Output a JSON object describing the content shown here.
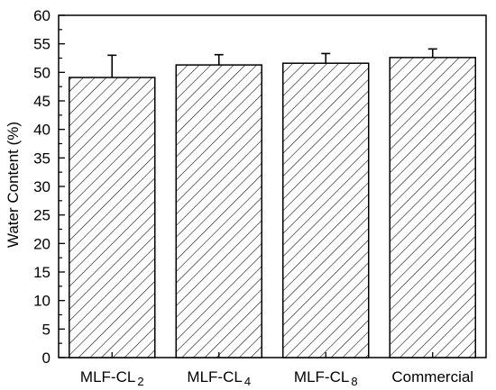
{
  "chart_data": {
    "type": "bar",
    "categories": [
      {
        "base": "MLF-CL",
        "sub": "2"
      },
      {
        "base": "MLF-CL",
        "sub": "4"
      },
      {
        "base": "MLF-CL",
        "sub": "8"
      },
      {
        "base": "Commercial",
        "sub": ""
      }
    ],
    "values": [
      49.1,
      51.3,
      51.6,
      52.6
    ],
    "errors": [
      3.9,
      1.8,
      1.7,
      1.5
    ],
    "ylabel": "Water Content (%)",
    "xlabel": "",
    "ylim": [
      0,
      60
    ],
    "yticks": [
      0,
      5,
      10,
      15,
      20,
      25,
      30,
      35,
      40,
      45,
      50,
      55,
      60
    ],
    "bar_fill": "hatched",
    "bar_color": "#000000",
    "grid": false,
    "legend": "none"
  }
}
